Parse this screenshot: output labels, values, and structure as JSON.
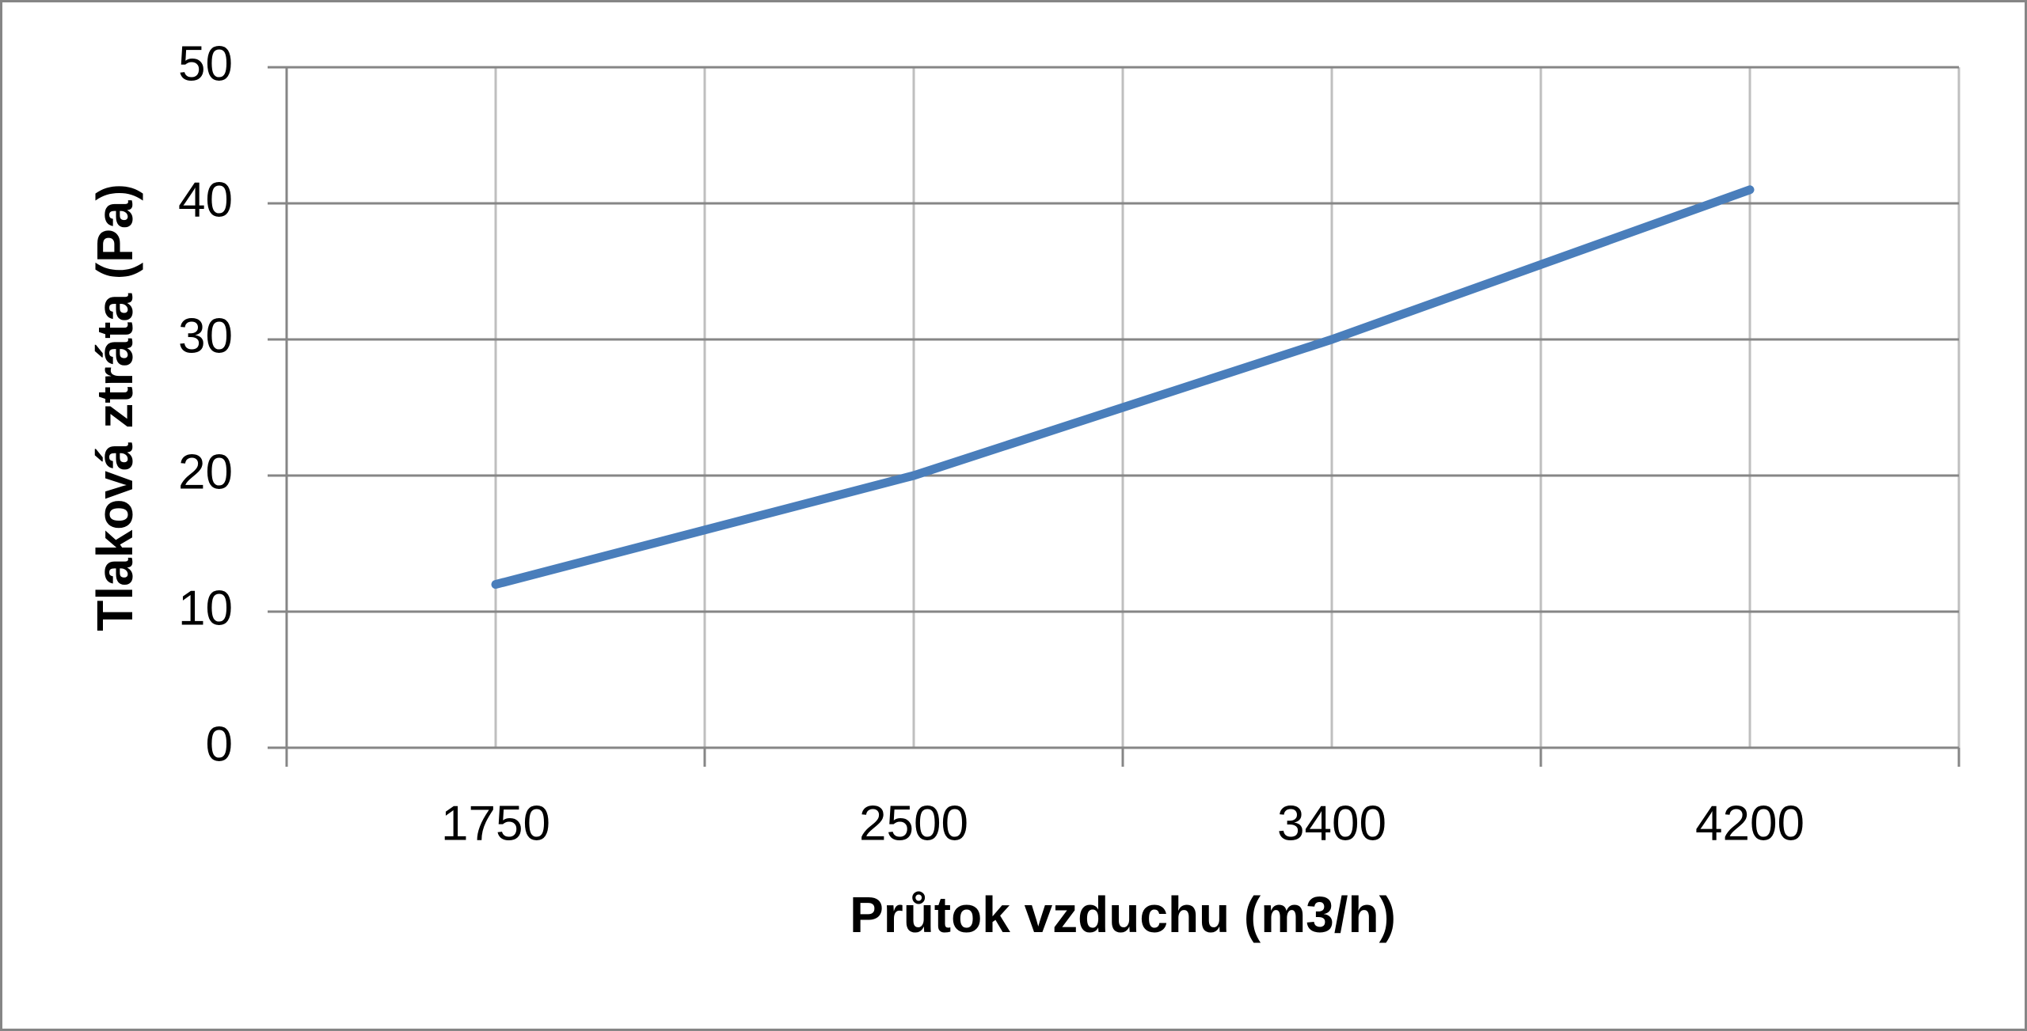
{
  "chart_data": {
    "type": "line",
    "x_label": "Průtok vzduchu (m3/h)",
    "y_label": "Tlaková ztráta (Pa)",
    "categories": [
      "1750",
      "2500",
      "3400",
      "4200"
    ],
    "values": [
      12,
      20,
      30,
      41
    ],
    "color": "#4a7ebb",
    "ylim": [
      0,
      50
    ],
    "yticks": [
      0,
      10,
      20,
      30,
      40,
      50
    ],
    "grid": true
  }
}
